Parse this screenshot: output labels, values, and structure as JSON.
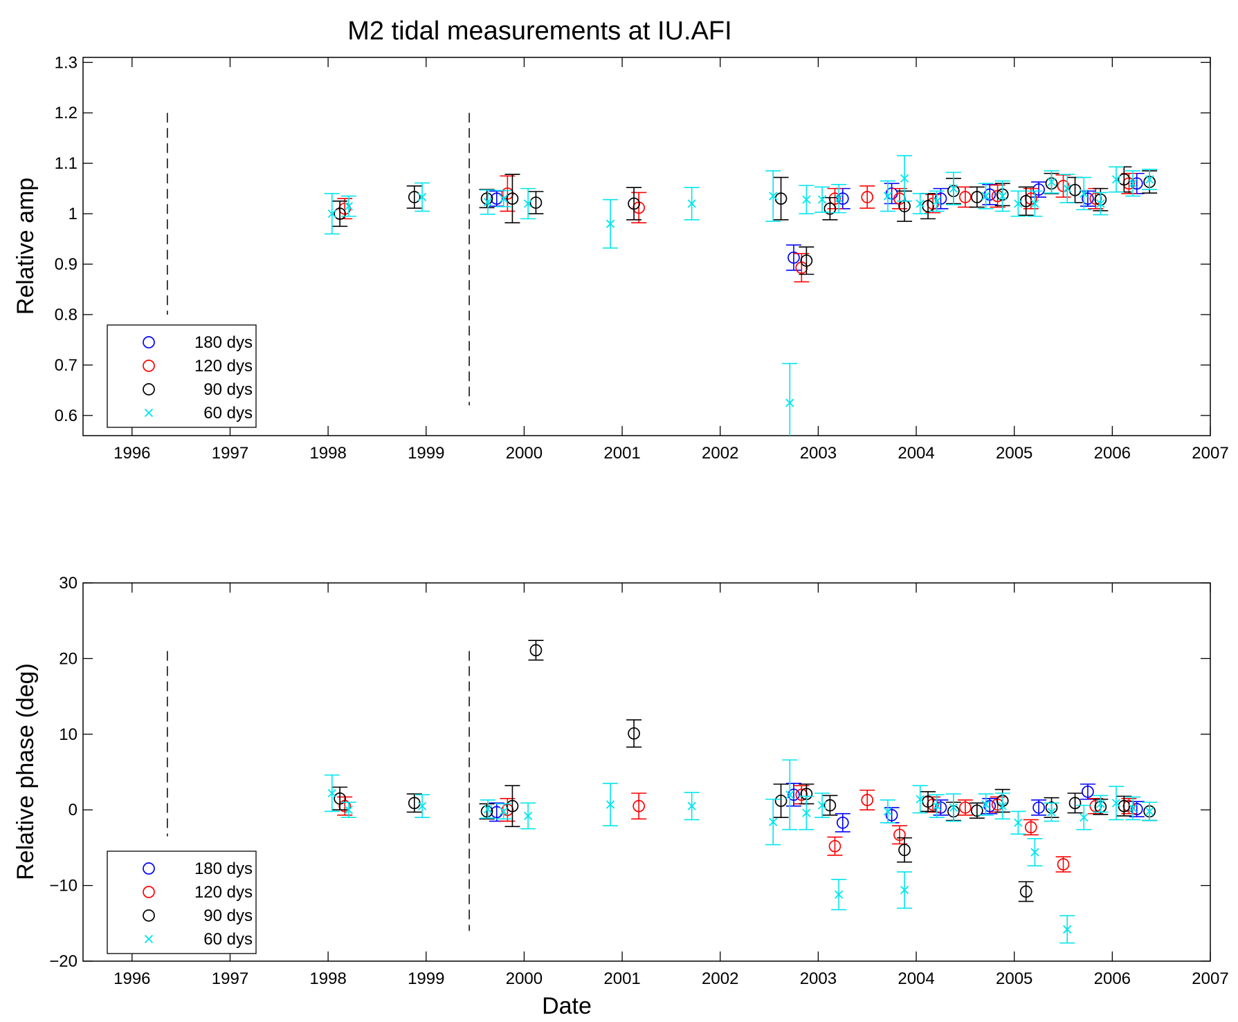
{
  "figure": {
    "title": "M2 tidal measurements at IU.AFI",
    "xlabel": "Date"
  },
  "legend": [
    {
      "key": "s180",
      "label": "180 dys",
      "color": "#0000ff",
      "marker": "circle"
    },
    {
      "key": "s120",
      "label": "120 dys",
      "color": "#ff0000",
      "marker": "circle"
    },
    {
      "key": "s90",
      "label": "90 dys",
      "color": "#000000",
      "marker": "circle"
    },
    {
      "key": "s60",
      "label": "60 dys",
      "color": "#00e5ee",
      "marker": "x"
    }
  ],
  "chart_data": [
    {
      "type": "scatter",
      "ylabel": "Relative amp",
      "xlim": [
        1995.5,
        2007
      ],
      "ylim": [
        0.56,
        1.31
      ],
      "xticks": [
        1996,
        1997,
        1998,
        1999,
        2000,
        2001,
        2002,
        2003,
        2004,
        2005,
        2006,
        2007
      ],
      "yticks": [
        0.6,
        0.7,
        0.8,
        0.9,
        1,
        1.1,
        1.2,
        1.3
      ],
      "ytick_labels": [
        "0.6",
        "0.7",
        "0.8",
        "0.9",
        "1",
        "1.1",
        "1.2",
        "1.3"
      ],
      "vlines": [
        {
          "x": 1996.36,
          "y": [
            0.8,
            1.2
          ]
        },
        {
          "x": 1999.44,
          "y": [
            0.62,
            1.2
          ]
        }
      ],
      "legend_position": "bottom-left",
      "error_bars": true,
      "series": [
        {
          "name": "180 dys",
          "key": "s180",
          "points": [
            [
              1999.72,
              1.03,
              0.015
            ],
            [
              2002.75,
              0.913,
              0.025
            ],
            [
              2003.25,
              1.03,
              0.02
            ],
            [
              2003.75,
              1.04,
              0.02
            ],
            [
              2004.25,
              1.03,
              0.02
            ],
            [
              2004.75,
              1.038,
              0.02
            ],
            [
              2005.25,
              1.048,
              0.015
            ],
            [
              2005.75,
              1.03,
              0.015
            ],
            [
              2006.25,
              1.06,
              0.02
            ]
          ]
        },
        {
          "name": "120 dys",
          "key": "s120",
          "points": [
            [
              1998.17,
              1.01,
              0.02
            ],
            [
              1999.83,
              1.04,
              0.035
            ],
            [
              2001.17,
              1.012,
              0.03
            ],
            [
              2002.83,
              0.893,
              0.028
            ],
            [
              2003.17,
              1.03,
              0.02
            ],
            [
              2003.5,
              1.033,
              0.022
            ],
            [
              2003.83,
              1.03,
              0.02
            ],
            [
              2004.17,
              1.02,
              0.018
            ],
            [
              2004.5,
              1.033,
              0.02
            ],
            [
              2004.83,
              1.035,
              0.022
            ],
            [
              2005.17,
              1.03,
              0.02
            ],
            [
              2005.5,
              1.055,
              0.022
            ],
            [
              2005.83,
              1.03,
              0.02
            ],
            [
              2006.17,
              1.06,
              0.02
            ]
          ]
        },
        {
          "name": "90 dys",
          "key": "s90",
          "points": [
            [
              1998.12,
              1.0,
              0.025
            ],
            [
              1998.88,
              1.033,
              0.022
            ],
            [
              1999.62,
              1.03,
              0.018
            ],
            [
              1999.88,
              1.03,
              0.048
            ],
            [
              2000.12,
              1.022,
              0.022
            ],
            [
              2001.12,
              1.02,
              0.032
            ],
            [
              2002.62,
              1.03,
              0.042
            ],
            [
              2002.88,
              0.907,
              0.027
            ],
            [
              2003.12,
              1.01,
              0.022
            ],
            [
              2003.88,
              1.015,
              0.03
            ],
            [
              2004.12,
              1.015,
              0.025
            ],
            [
              2004.38,
              1.045,
              0.025
            ],
            [
              2004.62,
              1.033,
              0.02
            ],
            [
              2004.88,
              1.038,
              0.022
            ],
            [
              2005.12,
              1.025,
              0.028
            ],
            [
              2005.38,
              1.06,
              0.02
            ],
            [
              2005.62,
              1.047,
              0.025
            ],
            [
              2005.88,
              1.028,
              0.022
            ],
            [
              2006.12,
              1.068,
              0.025
            ],
            [
              2006.38,
              1.063,
              0.022
            ]
          ]
        },
        {
          "name": "60 dys",
          "key": "s60",
          "points": [
            [
              1998.04,
              1.0,
              0.04
            ],
            [
              1998.21,
              1.015,
              0.02
            ],
            [
              1998.96,
              1.033,
              0.028
            ],
            [
              1999.63,
              1.023,
              0.024
            ],
            [
              1999.79,
              1.03,
              0.016
            ],
            [
              2000.04,
              1.02,
              0.03
            ],
            [
              2000.88,
              0.98,
              0.048
            ],
            [
              2001.71,
              1.02,
              0.032
            ],
            [
              2002.54,
              1.035,
              0.05
            ],
            [
              2002.71,
              0.625,
              0.078
            ],
            [
              2002.88,
              1.028,
              0.028
            ],
            [
              2003.04,
              1.028,
              0.025
            ],
            [
              2003.21,
              1.03,
              0.028
            ],
            [
              2003.71,
              1.035,
              0.03
            ],
            [
              2003.88,
              1.07,
              0.045
            ],
            [
              2004.04,
              1.02,
              0.02
            ],
            [
              2004.21,
              1.025,
              0.02
            ],
            [
              2004.38,
              1.05,
              0.032
            ],
            [
              2004.71,
              1.035,
              0.025
            ],
            [
              2004.88,
              1.035,
              0.03
            ],
            [
              2005.04,
              1.02,
              0.025
            ],
            [
              2005.21,
              1.02,
              0.025
            ],
            [
              2005.38,
              1.063,
              0.022
            ],
            [
              2005.54,
              1.05,
              0.028
            ],
            [
              2005.71,
              1.04,
              0.032
            ],
            [
              2005.88,
              1.02,
              0.022
            ],
            [
              2006.04,
              1.068,
              0.025
            ],
            [
              2006.21,
              1.06,
              0.025
            ],
            [
              2006.38,
              1.068,
              0.02
            ]
          ]
        }
      ]
    },
    {
      "type": "scatter",
      "ylabel": "Relative phase (deg)",
      "xlim": [
        1995.5,
        2007
      ],
      "ylim": [
        -20,
        30
      ],
      "xticks": [
        1996,
        1997,
        1998,
        1999,
        2000,
        2001,
        2002,
        2003,
        2004,
        2005,
        2006,
        2007
      ],
      "yticks": [
        -20,
        -10,
        0,
        10,
        20,
        30
      ],
      "ytick_labels": [
        "−20",
        "−10",
        "0",
        "10",
        "20",
        "30"
      ],
      "vlines": [
        {
          "x": 1996.36,
          "y": [
            -3.5,
            21
          ]
        },
        {
          "x": 1999.44,
          "y": [
            -16,
            21
          ]
        }
      ],
      "legend_position": "bottom-left",
      "error_bars": true,
      "series": [
        {
          "name": "180 dys",
          "key": "s180",
          "points": [
            [
              1999.72,
              -0.3,
              1.2
            ],
            [
              2002.75,
              2.0,
              1.5
            ],
            [
              2003.25,
              -1.7,
              1.2
            ],
            [
              2003.75,
              -0.7,
              1.0
            ],
            [
              2004.25,
              0.3,
              1.0
            ],
            [
              2004.75,
              0.5,
              1.0
            ],
            [
              2005.25,
              0.3,
              1.0
            ],
            [
              2005.75,
              2.4,
              1.0
            ],
            [
              2006.25,
              0.1,
              1.0
            ]
          ]
        },
        {
          "name": "120 dys",
          "key": "s120",
          "points": [
            [
              1998.17,
              0.5,
              1.2
            ],
            [
              1999.83,
              0.0,
              1.5
            ],
            [
              2001.17,
              0.5,
              1.7
            ],
            [
              2002.83,
              2.0,
              1.2
            ],
            [
              2003.17,
              -4.8,
              1.2
            ],
            [
              2003.5,
              1.3,
              1.3
            ],
            [
              2003.83,
              -3.3,
              1.2
            ],
            [
              2004.17,
              0.7,
              1.0
            ],
            [
              2004.5,
              0.3,
              1.0
            ],
            [
              2004.83,
              0.7,
              1.0
            ],
            [
              2005.17,
              -2.3,
              1.0
            ],
            [
              2005.5,
              -7.2,
              1.0
            ],
            [
              2005.83,
              0.5,
              1.0
            ],
            [
              2006.17,
              0.5,
              1.0
            ]
          ]
        },
        {
          "name": "90 dys",
          "key": "s90",
          "points": [
            [
              1998.12,
              1.5,
              1.5
            ],
            [
              1998.88,
              0.9,
              1.2
            ],
            [
              1999.62,
              -0.2,
              1.0
            ],
            [
              1999.88,
              0.5,
              2.7
            ],
            [
              2000.12,
              21.1,
              1.3
            ],
            [
              2001.12,
              10.1,
              1.8
            ],
            [
              2002.62,
              1.2,
              2.2
            ],
            [
              2002.88,
              2.1,
              1.3
            ],
            [
              2003.12,
              0.6,
              1.3
            ],
            [
              2003.88,
              -5.3,
              1.6
            ],
            [
              2004.12,
              1.1,
              1.3
            ],
            [
              2004.38,
              -0.2,
              1.2
            ],
            [
              2004.62,
              -0.1,
              1.0
            ],
            [
              2004.88,
              1.2,
              1.5
            ],
            [
              2005.12,
              -10.8,
              1.3
            ],
            [
              2005.38,
              0.3,
              1.3
            ],
            [
              2005.62,
              0.9,
              1.3
            ],
            [
              2005.88,
              0.4,
              1.0
            ],
            [
              2006.12,
              0.5,
              1.3
            ],
            [
              2006.38,
              -0.2,
              1.2
            ]
          ]
        },
        {
          "name": "60 dys",
          "key": "s60",
          "points": [
            [
              1998.04,
              2.2,
              2.4
            ],
            [
              1998.21,
              0.0,
              1.0
            ],
            [
              1998.96,
              0.5,
              1.5
            ],
            [
              1999.63,
              0.1,
              1.2
            ],
            [
              1999.79,
              -0.2,
              1.0
            ],
            [
              2000.04,
              -0.8,
              1.7
            ],
            [
              2000.88,
              0.7,
              2.8
            ],
            [
              2001.71,
              0.5,
              1.8
            ],
            [
              2002.54,
              -1.6,
              3.0
            ],
            [
              2002.71,
              2.0,
              4.6
            ],
            [
              2002.88,
              -0.4,
              2.2
            ],
            [
              2003.04,
              0.6,
              1.6
            ],
            [
              2003.21,
              -11.2,
              2.0
            ],
            [
              2003.71,
              -0.2,
              1.5
            ],
            [
              2003.88,
              -10.6,
              2.4
            ],
            [
              2004.04,
              1.4,
              1.8
            ],
            [
              2004.21,
              0.5,
              1.5
            ],
            [
              2004.38,
              0.3,
              1.8
            ],
            [
              2004.71,
              0.7,
              1.4
            ],
            [
              2004.88,
              0.5,
              1.7
            ],
            [
              2005.04,
              -1.7,
              1.5
            ],
            [
              2005.21,
              -5.6,
              1.8
            ],
            [
              2005.38,
              -0.3,
              1.2
            ],
            [
              2005.54,
              -15.8,
              1.8
            ],
            [
              2005.71,
              -1.0,
              1.6
            ],
            [
              2005.88,
              0.8,
              1.1
            ],
            [
              2006.04,
              0.9,
              2.2
            ],
            [
              2006.21,
              0.2,
              1.5
            ],
            [
              2006.38,
              -0.2,
              1.2
            ]
          ]
        }
      ]
    }
  ]
}
